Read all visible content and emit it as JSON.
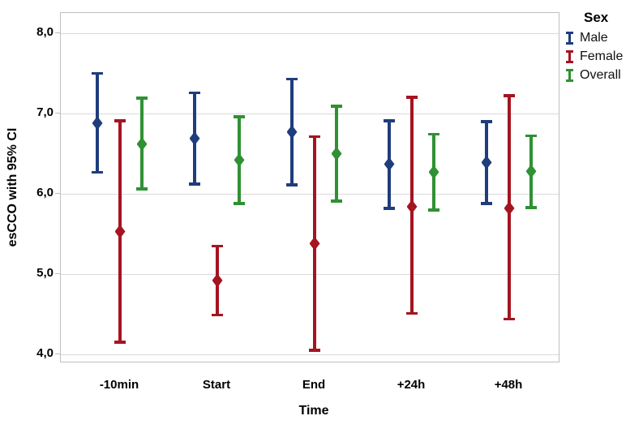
{
  "chart_data": {
    "type": "errorbar",
    "title": "",
    "xlabel": "Time",
    "ylabel": "esCCO with 95% CI",
    "categories": [
      "-10min",
      "Start",
      "End",
      "+24h",
      "+48h"
    ],
    "y_ticks": [
      "8,0",
      "7,0",
      "6,0",
      "5,0",
      "4,0"
    ],
    "y_tick_values": [
      8.0,
      7.0,
      6.0,
      5.0,
      4.0
    ],
    "ylim": [
      3.85,
      8.25
    ],
    "grid": true,
    "legend_title": "Sex",
    "legend_position": "top-right-outside",
    "series": [
      {
        "name": "Male",
        "color": "#1f3d7c",
        "means": [
          6.88,
          6.69,
          6.77,
          6.37,
          6.39
        ],
        "lower": [
          6.27,
          6.12,
          6.11,
          5.82,
          5.88
        ],
        "upper": [
          7.5,
          7.26,
          7.43,
          6.91,
          6.9
        ]
      },
      {
        "name": "Female",
        "color": "#a41421",
        "means": [
          5.53,
          4.92,
          5.38,
          5.84,
          5.82
        ],
        "lower": [
          4.15,
          4.49,
          4.05,
          4.51,
          4.44
        ],
        "upper": [
          6.91,
          5.35,
          6.71,
          7.2,
          7.22
        ]
      },
      {
        "name": "Overall",
        "color": "#2f9133",
        "means": [
          6.62,
          6.42,
          6.5,
          6.27,
          6.28
        ],
        "lower": [
          6.06,
          5.88,
          5.91,
          5.8,
          5.83
        ],
        "upper": [
          7.19,
          6.96,
          7.09,
          6.74,
          6.72
        ]
      }
    ]
  },
  "colors": {
    "grid": "#dadada",
    "frame": "#bfbfbf",
    "text": "#000000",
    "background": "#ffffff"
  }
}
